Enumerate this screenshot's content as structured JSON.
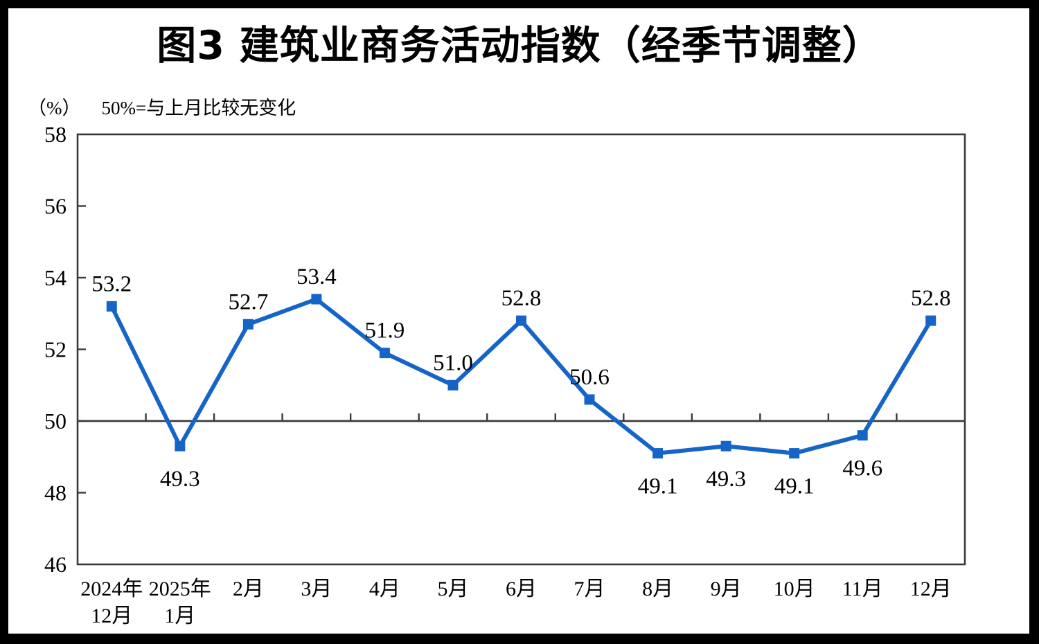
{
  "chart_data": {
    "type": "line",
    "title": "图3  建筑业商务活动指数（经季节调整）",
    "unit_label": "（%）",
    "note": "50%=与上月比较无变化",
    "categories": [
      [
        "2024年",
        "12月"
      ],
      [
        "2025年",
        "1月"
      ],
      [
        "2月"
      ],
      [
        "3月"
      ],
      [
        "4月"
      ],
      [
        "5月"
      ],
      [
        "6月"
      ],
      [
        "7月"
      ],
      [
        "8月"
      ],
      [
        "9月"
      ],
      [
        "10月"
      ],
      [
        "11月"
      ],
      [
        "12月"
      ]
    ],
    "values": [
      53.2,
      49.3,
      52.7,
      53.4,
      51.9,
      51.0,
      52.8,
      50.6,
      49.1,
      49.3,
      49.1,
      49.6,
      52.8
    ],
    "label_positions": [
      "above",
      "below",
      "above",
      "above",
      "above",
      "above",
      "above",
      "above",
      "below",
      "below",
      "below",
      "below",
      "above"
    ],
    "ylim": [
      46,
      58
    ],
    "yticks": [
      46,
      48,
      50,
      52,
      54,
      56,
      58
    ],
    "reference_line": 50,
    "grid": "off",
    "legend": "none",
    "marker": "square",
    "line_color": "#1565c8",
    "axis_color": "#3a3a3a",
    "text_color": "#000000"
  }
}
